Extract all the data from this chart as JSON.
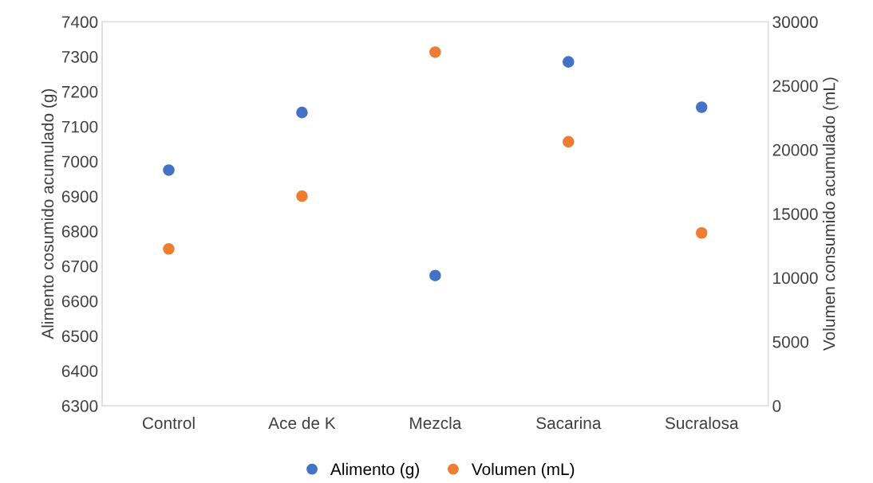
{
  "chart_data": {
    "type": "scatter",
    "ylabel": "Alimento cosumido acumulado (g)",
    "y2label": "Volumen consumido acumulado (mL)",
    "categories": [
      "Control",
      "Ace de K",
      "Mezcla",
      "Sacarina",
      "Sucralosa"
    ],
    "series": [
      {
        "name": "Alimento (g)",
        "color": "#4472c4",
        "values": [
          6975,
          7140,
          6673,
          7285,
          7155
        ]
      },
      {
        "name": "Volumen (mL)",
        "color": "#ed7d31",
        "axis": "y2",
        "values": [
          12250,
          16375,
          27625,
          20625,
          13500
        ]
      }
    ],
    "ylim": [
      6300,
      7400
    ],
    "yticks": [
      6300,
      6400,
      6500,
      6600,
      6700,
      6800,
      6900,
      7000,
      7100,
      7200,
      7300,
      7400
    ],
    "y2lim": [
      0,
      30000
    ],
    "y2ticks": [
      0,
      5000,
      10000,
      15000,
      20000,
      25000,
      30000
    ],
    "marker": "circle",
    "legend": "bottom",
    "grid": false
  }
}
